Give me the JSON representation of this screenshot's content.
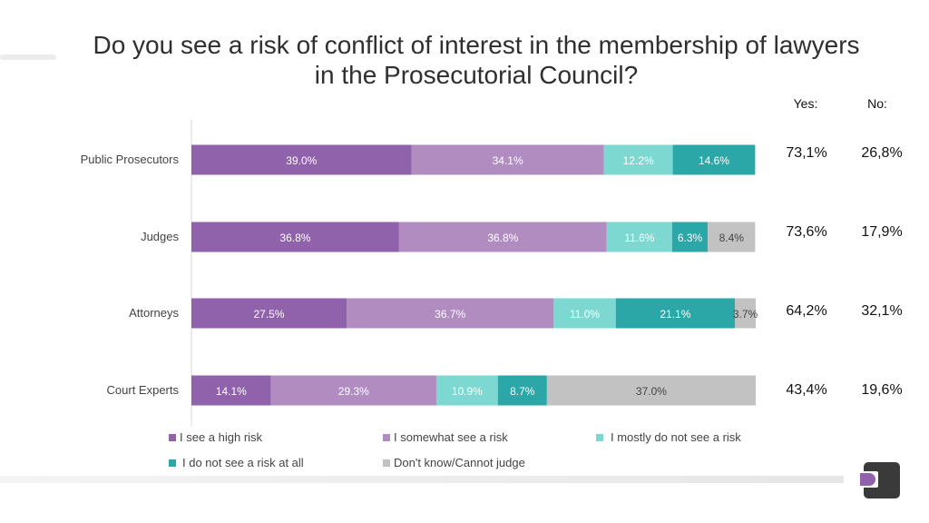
{
  "title": "Do you see a risk of conflict of interest in the membership of lawyers\nin the Prosecutorial Council?",
  "summary_headers": {
    "yes": "Yes:",
    "no": "No:"
  },
  "summary": [
    {
      "yes": "73,1%",
      "no": "26,8%"
    },
    {
      "yes": "73,6%",
      "no": "17,9%"
    },
    {
      "yes": "64,2%",
      "no": "32,1%"
    },
    {
      "yes": "43,4%",
      "no": "19,6%"
    }
  ],
  "chart_data": {
    "type": "bar",
    "orientation": "horizontal",
    "stacked": true,
    "percent": true,
    "xlim": [
      0,
      100
    ],
    "categories": [
      "Public Prosecutors",
      "Judges",
      "Attorneys",
      "Court Experts"
    ],
    "series": [
      {
        "name": "I see a high risk",
        "color": "#9062ab",
        "values": [
          39.0,
          36.8,
          27.5,
          14.1
        ],
        "labels": [
          "39.0%",
          "36.8%",
          "27.5%",
          "14.1%"
        ],
        "label_color": "#ffffff"
      },
      {
        "name": "I somewhat see a risk",
        "color": "#b08cc0",
        "values": [
          34.1,
          36.8,
          36.7,
          29.3
        ],
        "labels": [
          "34.1%",
          "36.8%",
          "36.7%",
          "29.3%"
        ],
        "label_color": "#ffffff"
      },
      {
        "name": "I mostly do not see a risk",
        "color": "#7cd8d1",
        "values": [
          12.2,
          11.6,
          11.0,
          10.9
        ],
        "labels": [
          "12.2%",
          "11.6%",
          "11.0%",
          "10.9%"
        ],
        "label_color": "#ffffff"
      },
      {
        "name": "I do not see a risk at all",
        "color": "#2aa7a6",
        "values": [
          14.6,
          6.3,
          21.1,
          8.7
        ],
        "labels": [
          "14.6%",
          "6.3%",
          "21.1%",
          "8.7%"
        ],
        "label_color": "#ffffff"
      },
      {
        "name": "Don't know/Cannot judge",
        "color": "#c2c2c2",
        "values": [
          0.0,
          8.4,
          3.7,
          37.0
        ],
        "labels": [
          "",
          "8.4%",
          "3.7%",
          "37.0%"
        ],
        "label_color": "#444444"
      }
    ],
    "legend_position": "bottom",
    "grid": false
  }
}
